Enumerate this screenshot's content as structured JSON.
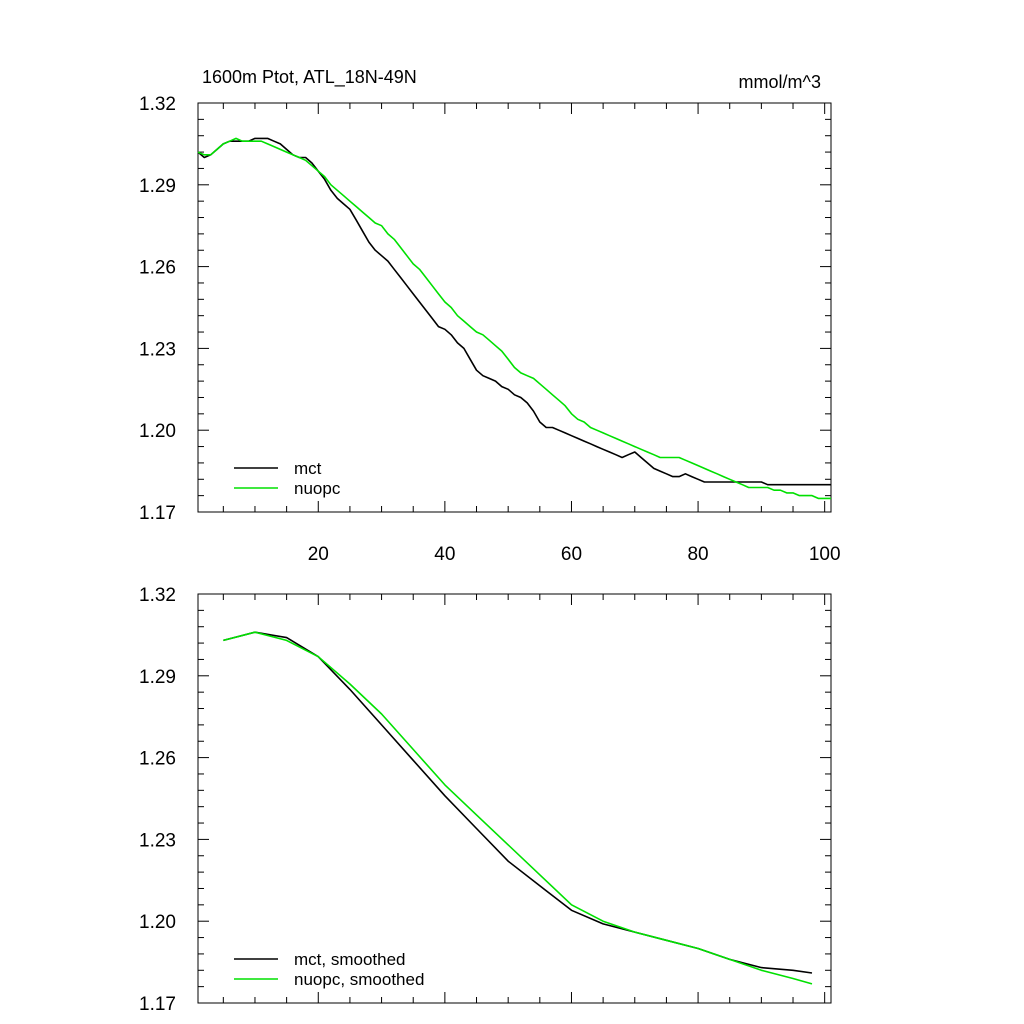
{
  "chart_data": [
    {
      "type": "line",
      "title": "1600m Ptot, ATL_18N-49N",
      "units": "mmol/m^3",
      "xlim": [
        1,
        101
      ],
      "ylim": [
        1.17,
        1.32
      ],
      "x_major_ticks": [
        20,
        40,
        60,
        80,
        100
      ],
      "x_tick_labels": [
        "20",
        "40",
        "60",
        "80",
        "100"
      ],
      "y_major_ticks": [
        1.17,
        1.2,
        1.23,
        1.26,
        1.29,
        1.32
      ],
      "y_tick_labels": [
        "1.17",
        "1.20",
        "1.23",
        "1.26",
        "1.29",
        "1.32"
      ],
      "legend_position": "bottom-left",
      "series": [
        {
          "name": "mct",
          "color": "#000000",
          "x": [
            1,
            2,
            3,
            4,
            5,
            6,
            7,
            8,
            9,
            10,
            11,
            12,
            13,
            14,
            15,
            16,
            17,
            18,
            19,
            20,
            21,
            22,
            23,
            24,
            25,
            26,
            27,
            28,
            29,
            30,
            31,
            32,
            33,
            34,
            35,
            36,
            37,
            38,
            39,
            40,
            41,
            42,
            43,
            44,
            45,
            46,
            47,
            48,
            49,
            50,
            51,
            52,
            53,
            54,
            55,
            56,
            57,
            58,
            59,
            60,
            61,
            62,
            63,
            64,
            65,
            66,
            67,
            68,
            69,
            70,
            71,
            72,
            73,
            74,
            75,
            76,
            77,
            78,
            79,
            80,
            81,
            82,
            83,
            84,
            85,
            86,
            87,
            88,
            89,
            90,
            91,
            92,
            93,
            94,
            95,
            96,
            97,
            98,
            99,
            100,
            101
          ],
          "values": [
            1.302,
            1.3,
            1.301,
            1.303,
            1.305,
            1.306,
            1.306,
            1.306,
            1.306,
            1.307,
            1.307,
            1.307,
            1.306,
            1.305,
            1.303,
            1.301,
            1.3,
            1.3,
            1.298,
            1.295,
            1.292,
            1.288,
            1.285,
            1.283,
            1.281,
            1.277,
            1.273,
            1.269,
            1.266,
            1.264,
            1.262,
            1.259,
            1.256,
            1.253,
            1.25,
            1.247,
            1.244,
            1.241,
            1.238,
            1.237,
            1.235,
            1.232,
            1.23,
            1.226,
            1.222,
            1.22,
            1.219,
            1.218,
            1.216,
            1.215,
            1.213,
            1.212,
            1.21,
            1.207,
            1.203,
            1.201,
            1.201,
            1.2,
            1.199,
            1.198,
            1.197,
            1.196,
            1.195,
            1.194,
            1.193,
            1.192,
            1.191,
            1.19,
            1.191,
            1.192,
            1.19,
            1.188,
            1.186,
            1.185,
            1.184,
            1.183,
            1.183,
            1.184,
            1.183,
            1.182,
            1.181,
            1.181,
            1.181,
            1.181,
            1.181,
            1.181,
            1.181,
            1.181,
            1.181,
            1.181,
            1.18,
            1.18,
            1.18,
            1.18,
            1.18,
            1.18,
            1.18,
            1.18,
            1.18,
            1.18,
            1.18
          ]
        },
        {
          "name": "nuopc",
          "color": "#00e000",
          "x": [
            1,
            2,
            3,
            4,
            5,
            6,
            7,
            8,
            9,
            10,
            11,
            12,
            13,
            14,
            15,
            16,
            17,
            18,
            19,
            20,
            21,
            22,
            23,
            24,
            25,
            26,
            27,
            28,
            29,
            30,
            31,
            32,
            33,
            34,
            35,
            36,
            37,
            38,
            39,
            40,
            41,
            42,
            43,
            44,
            45,
            46,
            47,
            48,
            49,
            50,
            51,
            52,
            53,
            54,
            55,
            56,
            57,
            58,
            59,
            60,
            61,
            62,
            63,
            64,
            65,
            66,
            67,
            68,
            69,
            70,
            71,
            72,
            73,
            74,
            75,
            76,
            77,
            78,
            79,
            80,
            81,
            82,
            83,
            84,
            85,
            86,
            87,
            88,
            89,
            90,
            91,
            92,
            93,
            94,
            95,
            96,
            97,
            98,
            99,
            100,
            101
          ],
          "values": [
            1.302,
            1.301,
            1.301,
            1.303,
            1.305,
            1.306,
            1.307,
            1.306,
            1.306,
            1.306,
            1.306,
            1.305,
            1.304,
            1.303,
            1.302,
            1.301,
            1.3,
            1.299,
            1.297,
            1.295,
            1.293,
            1.29,
            1.288,
            1.286,
            1.284,
            1.282,
            1.28,
            1.278,
            1.276,
            1.275,
            1.272,
            1.27,
            1.267,
            1.264,
            1.261,
            1.259,
            1.256,
            1.253,
            1.25,
            1.247,
            1.245,
            1.242,
            1.24,
            1.238,
            1.236,
            1.235,
            1.233,
            1.231,
            1.229,
            1.226,
            1.223,
            1.221,
            1.22,
            1.219,
            1.217,
            1.215,
            1.213,
            1.211,
            1.209,
            1.206,
            1.204,
            1.203,
            1.201,
            1.2,
            1.199,
            1.198,
            1.197,
            1.196,
            1.195,
            1.194,
            1.193,
            1.192,
            1.191,
            1.19,
            1.19,
            1.19,
            1.19,
            1.189,
            1.188,
            1.187,
            1.186,
            1.185,
            1.184,
            1.183,
            1.182,
            1.181,
            1.18,
            1.179,
            1.179,
            1.179,
            1.179,
            1.178,
            1.178,
            1.177,
            1.177,
            1.176,
            1.176,
            1.176,
            1.175,
            1.175,
            1.175
          ]
        }
      ]
    },
    {
      "type": "line",
      "title": "",
      "units": "",
      "xlim": [
        1,
        101
      ],
      "ylim": [
        1.17,
        1.32
      ],
      "x_major_ticks": [
        20,
        40,
        60,
        80,
        100
      ],
      "x_tick_labels": [],
      "y_major_ticks": [
        1.17,
        1.2,
        1.23,
        1.26,
        1.29,
        1.32
      ],
      "y_tick_labels": [
        "1.17",
        "1.20",
        "1.23",
        "1.26",
        "1.29",
        "1.32"
      ],
      "legend_position": "bottom-left",
      "series": [
        {
          "name": "mct, smoothed",
          "color": "#000000",
          "x": [
            5,
            10,
            15,
            20,
            25,
            30,
            35,
            40,
            45,
            50,
            55,
            60,
            65,
            70,
            75,
            80,
            85,
            90,
            95,
            98
          ],
          "values": [
            1.303,
            1.306,
            1.304,
            1.297,
            1.285,
            1.272,
            1.259,
            1.246,
            1.234,
            1.222,
            1.213,
            1.204,
            1.199,
            1.196,
            1.193,
            1.19,
            1.186,
            1.183,
            1.182,
            1.181
          ]
        },
        {
          "name": "nuopc, smoothed",
          "color": "#00e000",
          "x": [
            5,
            10,
            15,
            20,
            25,
            30,
            35,
            40,
            45,
            50,
            55,
            60,
            65,
            70,
            75,
            80,
            85,
            90,
            95,
            98
          ],
          "values": [
            1.303,
            1.306,
            1.303,
            1.297,
            1.287,
            1.276,
            1.263,
            1.25,
            1.239,
            1.228,
            1.217,
            1.206,
            1.2,
            1.196,
            1.193,
            1.19,
            1.186,
            1.182,
            1.179,
            1.177
          ]
        }
      ]
    }
  ]
}
